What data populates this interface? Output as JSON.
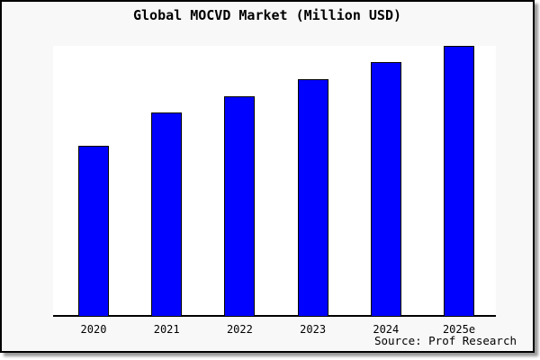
{
  "title": "Global MOCVD Market (Million USD)",
  "source_note": "Source: Prof Research",
  "colors": {
    "bar_fill": "#0000ff",
    "bar_border": "#000000",
    "card_background": "#f8f8f8",
    "plot_background": "#ffffff",
    "frame_border": "#000000",
    "shadow": "#9a9a9a",
    "text": "#000000"
  },
  "chart_data": {
    "type": "bar",
    "title": "Global MOCVD Market (Million USD)",
    "categories": [
      "2020",
      "2021",
      "2022",
      "2023",
      "2024",
      "2025e"
    ],
    "values": [
      189,
      226,
      244,
      263,
      282,
      300
    ],
    "value_note": "No y-axis, gridlines or data labels are shown; values are relative bar heights in screen pixels measured from the baseline (tallest bar = 300 = full plot height).",
    "xlabel": "",
    "ylabel": "",
    "ylim": [
      0,
      300
    ],
    "grid": false,
    "legend": false,
    "y_axis_visible": false,
    "x_axis_visible": true
  }
}
